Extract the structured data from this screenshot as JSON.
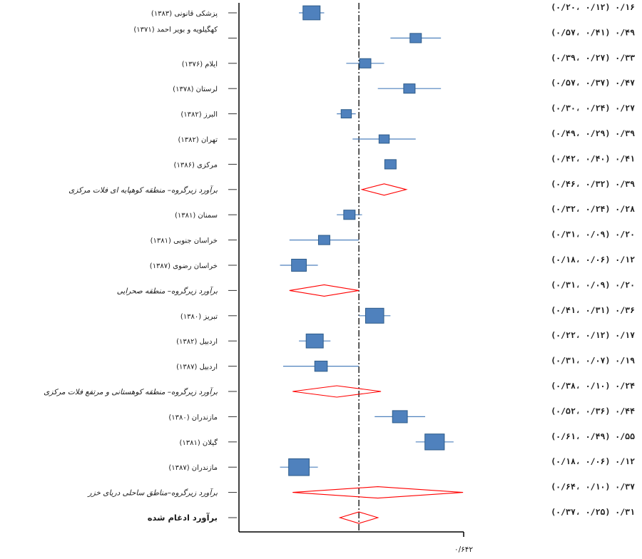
{
  "chart_data": {
    "type": "forest",
    "ref_line_value": 0.31,
    "x_tick_label": "۰/۶۴۲",
    "x_tick_value": 0.642,
    "xlim": [
      -0.07,
      0.642
    ],
    "colors": {
      "study_box": "#4f81bd",
      "study_box_stroke": "#2e5c8a",
      "ci_line": "#4f81bd",
      "diamond": "#ff0000",
      "axis": "#000000"
    },
    "rows": [
      {
        "kind": "study",
        "label": "پزشکی قانونی (۱۳۸۳)",
        "estimate": 0.16,
        "lower": 0.12,
        "upper": 0.2,
        "weight": 1.5,
        "ci_text": "۰/۱۶ (۰/۱۲ ،۰/۲۰)"
      },
      {
        "kind": "study",
        "label": "کهگیلویه و بویر احمد (۱۳۷۱)",
        "estimate": 0.49,
        "lower": 0.41,
        "upper": 0.57,
        "weight": 1.0,
        "ci_text": "۰/۴۹ (۰/۴۱ ،۰/۵۷)",
        "label_raised": true
      },
      {
        "kind": "study",
        "label": "ایلام (۱۳۷۶)",
        "estimate": 0.33,
        "lower": 0.27,
        "upper": 0.39,
        "weight": 1.0,
        "ci_text": "۰/۳۳ (۰/۲۷ ،۰/۳۹)"
      },
      {
        "kind": "study",
        "label": "لرستان (۱۳۷۸)",
        "estimate": 0.47,
        "lower": 0.37,
        "upper": 0.57,
        "weight": 1.0,
        "ci_text": "۰/۴۷ (۰/۳۷ ،۰/۵۷)"
      },
      {
        "kind": "study",
        "label": "البرز (۱۳۸۲)",
        "estimate": 0.27,
        "lower": 0.24,
        "upper": 0.3,
        "weight": 0.9,
        "ci_text": "۰/۲۷ (۰/۲۴ ،۰/۳۰)"
      },
      {
        "kind": "study",
        "label": "تهران (۱۳۸۲)",
        "estimate": 0.39,
        "lower": 0.29,
        "upper": 0.49,
        "weight": 0.9,
        "ci_text": "۰/۳۹ (۰/۲۹ ،۰/۴۹)"
      },
      {
        "kind": "study",
        "label": "مرکزی (۱۳۸۶)",
        "estimate": 0.41,
        "lower": 0.4,
        "upper": 0.42,
        "weight": 1.0,
        "ci_text": "۰/۴۱ (۰/۴۰ ،۰/۴۲)"
      },
      {
        "kind": "subtotal",
        "label": "برآورد زیرگروه– منطقه کوهپایه ای فلات مرکزی",
        "estimate": 0.39,
        "lower": 0.32,
        "upper": 0.46,
        "ci_text": "۰/۳۹ (۰/۳۲ ،۰/۴۶)"
      },
      {
        "kind": "study",
        "label": "سمنان (۱۳۸۱)",
        "estimate": 0.28,
        "lower": 0.24,
        "upper": 0.32,
        "weight": 1.0,
        "ci_text": "۰/۲۸ (۰/۲۴ ،۰/۳۲)"
      },
      {
        "kind": "study",
        "label": "خراسان جنوبی (۱۳۸۱)",
        "estimate": 0.2,
        "lower": 0.09,
        "upper": 0.31,
        "weight": 1.0,
        "ci_text": "۰/۲۰ (۰/۰۹ ،۰/۳۱)"
      },
      {
        "kind": "study",
        "label": "خراسان رضوی (۱۳۸۷)",
        "estimate": 0.12,
        "lower": 0.06,
        "upper": 0.18,
        "weight": 1.3,
        "ci_text": "۰/۱۲ (۰/۰۶ ،۰/۱۸)"
      },
      {
        "kind": "subtotal",
        "label": "برآورد زیرگروه– منطقه صحرایی",
        "estimate": 0.2,
        "lower": 0.09,
        "upper": 0.31,
        "ci_text": "۰/۲۰ (۰/۰۹ ،۰/۳۱)"
      },
      {
        "kind": "study",
        "label": "تبریز (۱۳۸۰)",
        "estimate": 0.36,
        "lower": 0.31,
        "upper": 0.41,
        "weight": 1.6,
        "ci_text": "۰/۳۶ (۰/۳۱ ،۰/۴۱)"
      },
      {
        "kind": "study",
        "label": "اردبیل (۱۳۸۲)",
        "estimate": 0.17,
        "lower": 0.12,
        "upper": 0.22,
        "weight": 1.5,
        "ci_text": "۰/۱۷ (۰/۱۲ ،۰/۲۲)"
      },
      {
        "kind": "study",
        "label": "اردبیل (۱۳۸۷)",
        "estimate": 0.19,
        "lower": 0.07,
        "upper": 0.31,
        "weight": 1.1,
        "ci_text": "۰/۱۹ (۰/۰۷ ،۰/۳۱)"
      },
      {
        "kind": "subtotal",
        "label": "برآورد زیرگروه– منطقه کوهستانی و مرتفع فلات مرکزی",
        "estimate": 0.24,
        "lower": 0.1,
        "upper": 0.38,
        "ci_text": "۰/۲۴ (۰/۱۰ ،۰/۳۸)"
      },
      {
        "kind": "study",
        "label": "مازندران (۱۳۸۰)",
        "estimate": 0.44,
        "lower": 0.36,
        "upper": 0.52,
        "weight": 1.3,
        "ci_text": "۰/۴۴ (۰/۳۶ ،۰/۵۲)"
      },
      {
        "kind": "study",
        "label": "گیلان (۱۳۸۱)",
        "estimate": 0.55,
        "lower": 0.49,
        "upper": 0.61,
        "weight": 1.7,
        "ci_text": "۰/۵۵ (۰/۴۹ ،۰/۶۱)"
      },
      {
        "kind": "study",
        "label": "مازندران (۱۳۸۷)",
        "estimate": 0.12,
        "lower": 0.06,
        "upper": 0.18,
        "weight": 1.8,
        "ci_text": "۰/۱۲ (۰/۰۶ ،۰/۱۸)"
      },
      {
        "kind": "subtotal",
        "label": "برآورد زیرگروه–مناطق ساحلی دریای خزر",
        "estimate": 0.37,
        "lower": 0.1,
        "upper": 0.64,
        "ci_text": "۰/۳۷ (۰/۱۰ ،۰/۶۴)"
      },
      {
        "kind": "overall",
        "label": "برآورد ادغام شده",
        "estimate": 0.31,
        "lower": 0.25,
        "upper": 0.37,
        "ci_text": "۰/۳۱ (۰/۲۵ ،۰/۳۷)"
      }
    ]
  }
}
